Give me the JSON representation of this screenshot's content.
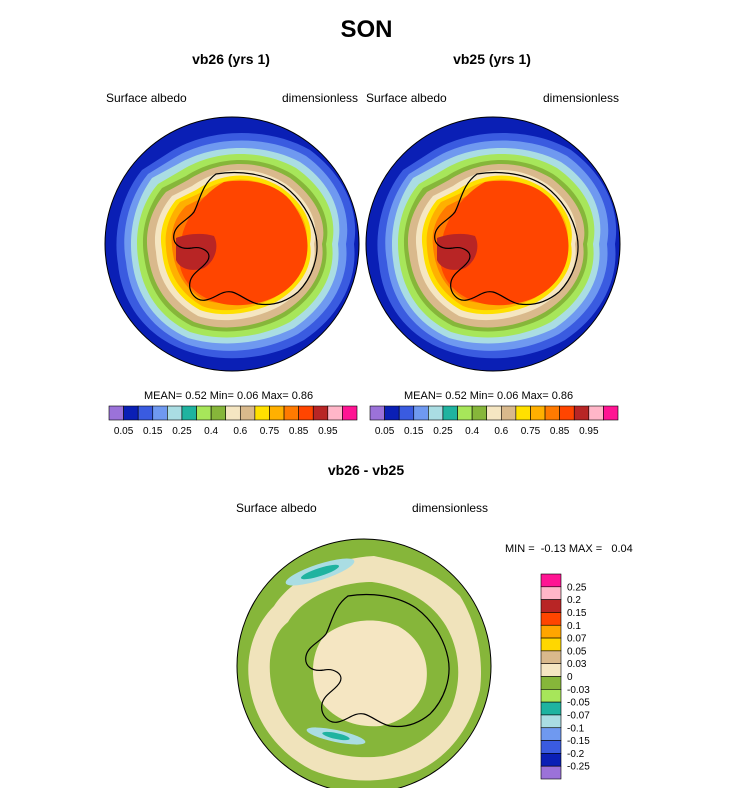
{
  "title": "SON",
  "panels": [
    {
      "subtitle": "vb26 (yrs 1)",
      "left_label": "Surface albedo",
      "right_label": "dimensionless",
      "stats": {
        "mean_label": "MEAN=",
        "mean": "0.52",
        "min_label": "Min=",
        "min": "0.06",
        "max_label": "Max=",
        "max": "0.86"
      }
    },
    {
      "subtitle": "vb25 (yrs 1)",
      "left_label": "Surface albedo",
      "right_label": "dimensionless",
      "stats": {
        "mean_label": "MEAN=",
        "mean": "0.52",
        "min_label": "Min=",
        "min": "0.06",
        "max_label": "Max=",
        "max": "0.86"
      }
    }
  ],
  "diff": {
    "subtitle": "vb26 - vb25",
    "left_label": "Surface albedo",
    "right_label": "dimensionless",
    "minmax": "MIN =  -0.13 MAX =   0.04"
  },
  "chart_data": [
    {
      "type": "heatmap",
      "title": "vb26 (yrs 1)",
      "projection": "south-polar stereographic",
      "variable": "Surface albedo",
      "units": "dimensionless",
      "mean": 0.52,
      "min": 0.06,
      "max": 0.86,
      "colorbar_orientation": "horizontal",
      "colorbar_levels": [
        "0.05",
        "0.1",
        "0.15",
        "0.2",
        "0.25",
        "0.3",
        "0.4",
        "0.5",
        "0.6",
        "0.7",
        "0.75",
        "0.8",
        "0.85",
        "0.9",
        "0.95"
      ],
      "colorbar_tick_labels": [
        "0.05",
        "0.15",
        "0.25",
        "0.4",
        "0.6",
        "0.75",
        "0.85",
        "0.95"
      ],
      "colors": [
        "#9b72d9",
        "#0a1fb5",
        "#3a5be0",
        "#6f99f0",
        "#aadde3",
        "#1fb3a0",
        "#a7e65a",
        "#86b63a",
        "#f5e6c2",
        "#d9b98c",
        "#ffe000",
        "#ffb000",
        "#ff7a00",
        "#ff4500",
        "#b82525",
        "#ffb6c8",
        "#ff1493"
      ]
    },
    {
      "type": "heatmap",
      "title": "vb25 (yrs 1)",
      "projection": "south-polar stereographic",
      "variable": "Surface albedo",
      "units": "dimensionless",
      "mean": 0.52,
      "min": 0.06,
      "max": 0.86,
      "colorbar_orientation": "horizontal",
      "colorbar_levels": [
        "0.05",
        "0.1",
        "0.15",
        "0.2",
        "0.25",
        "0.3",
        "0.4",
        "0.5",
        "0.6",
        "0.7",
        "0.75",
        "0.8",
        "0.85",
        "0.9",
        "0.95"
      ],
      "colorbar_tick_labels": [
        "0.05",
        "0.15",
        "0.25",
        "0.4",
        "0.6",
        "0.75",
        "0.85",
        "0.95"
      ],
      "colors": [
        "#9b72d9",
        "#0a1fb5",
        "#3a5be0",
        "#6f99f0",
        "#aadde3",
        "#1fb3a0",
        "#a7e65a",
        "#86b63a",
        "#f5e6c2",
        "#d9b98c",
        "#ffe000",
        "#ffb000",
        "#ff7a00",
        "#ff4500",
        "#b82525",
        "#ffb6c8",
        "#ff1493"
      ]
    },
    {
      "type": "heatmap",
      "title": "vb26 - vb25",
      "projection": "south-polar stereographic",
      "variable": "Surface albedo",
      "units": "dimensionless",
      "min": -0.13,
      "max": 0.04,
      "colorbar_orientation": "vertical",
      "colorbar_labels": [
        "0.25",
        "0.2",
        "0.15",
        "0.1",
        "0.07",
        "0.05",
        "0.03",
        "0",
        "-0.03",
        "-0.05",
        "-0.07",
        "-0.1",
        "-0.15",
        "-0.2",
        "-0.25"
      ],
      "colors_top_to_bottom": [
        "#ff1493",
        "#ffb6c8",
        "#b82525",
        "#ff4500",
        "#ffa500",
        "#ffd700",
        "#d9b98c",
        "#f5e6c2",
        "#86b63a",
        "#a7e65a",
        "#1fb3a0",
        "#aadde3",
        "#6f99f0",
        "#3a5be0",
        "#0a1fb5",
        "#9b72d9"
      ]
    }
  ]
}
